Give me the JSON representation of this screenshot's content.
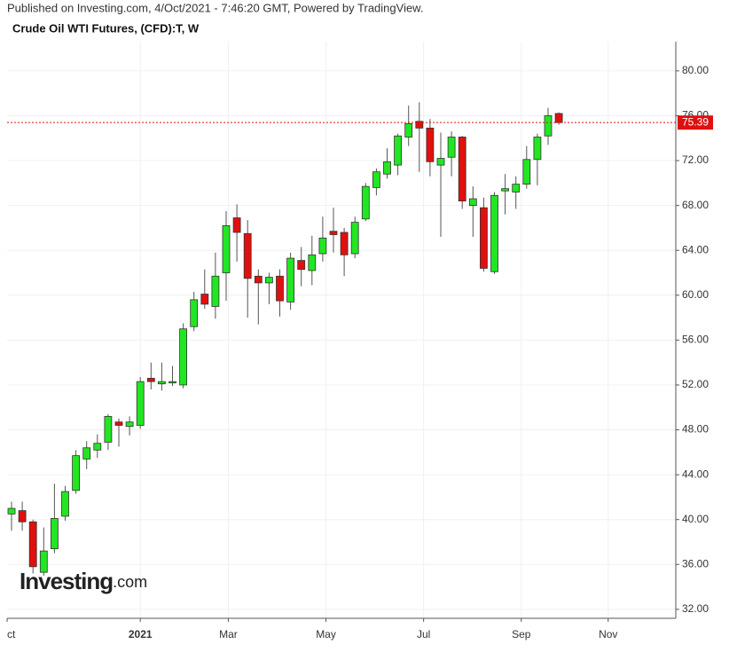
{
  "chart_data": {
    "type": "candlestick",
    "published": "Published on Investing.com, 4/Oct/2021 - 7:46:20 GMT, Powered by TradingView.",
    "title": "Crude Oil WTI Futures, (CFD):T, W",
    "watermark": "Investing",
    "watermark_suffix": ".com",
    "x": [
      0,
      1,
      2,
      3,
      4,
      5,
      6,
      7,
      8,
      9,
      10,
      11,
      12,
      13,
      14,
      15,
      16,
      17,
      18,
      19,
      20,
      21,
      22,
      23,
      24,
      25,
      26,
      27,
      28,
      29,
      30,
      31,
      32,
      33,
      34,
      35,
      36,
      37,
      38,
      39,
      40,
      41,
      42,
      43,
      44,
      45,
      46,
      47,
      48,
      49,
      50,
      51
    ],
    "open": [
      40.5,
      40.8,
      39.8,
      35.3,
      37.4,
      40.3,
      42.6,
      45.4,
      46.2,
      46.9,
      48.7,
      48.3,
      48.4,
      52.6,
      52.1,
      52.2,
      52.0,
      57.2,
      60.1,
      59.0,
      62.0,
      66.9,
      65.5,
      61.7,
      61.1,
      61.7,
      59.4,
      63.1,
      62.2,
      63.7,
      65.7,
      65.6,
      63.7,
      66.8,
      69.6,
      70.8,
      71.6,
      74.1,
      75.5,
      74.9,
      71.6,
      72.3,
      74.1,
      68.0,
      67.8,
      62.1,
      69.3,
      69.2,
      69.9,
      72.1,
      74.2,
      76.2
    ],
    "high": [
      41.6,
      41.6,
      40.0,
      39.3,
      43.2,
      43.0,
      46.2,
      47.0,
      47.6,
      49.4,
      49.0,
      49.2,
      52.7,
      54.0,
      54.0,
      53.7,
      57.5,
      60.3,
      62.3,
      63.8,
      67.5,
      68.1,
      66.7,
      62.3,
      62.0,
      62.3,
      63.8,
      64.3,
      65.3,
      67.0,
      67.8,
      66.0,
      67.0,
      70.0,
      71.3,
      73.1,
      74.4,
      76.9,
      77.2,
      75.7,
      74.5,
      74.6,
      74.2,
      69.7,
      68.7,
      69.2,
      70.8,
      70.6,
      73.3,
      74.4,
      76.7,
      76.3
    ],
    "low": [
      39.0,
      39.0,
      35.2,
      35.0,
      37.0,
      39.9,
      42.3,
      44.5,
      45.5,
      46.2,
      46.5,
      47.5,
      48.1,
      51.6,
      51.5,
      51.9,
      51.7,
      56.8,
      58.8,
      57.9,
      59.5,
      63.0,
      58.0,
      57.4,
      59.2,
      58.1,
      58.7,
      60.8,
      60.9,
      63.0,
      63.8,
      61.7,
      63.3,
      66.6,
      68.9,
      70.4,
      70.7,
      73.3,
      71.0,
      70.6,
      65.2,
      70.6,
      67.7,
      65.2,
      62.1,
      61.9,
      67.2,
      67.7,
      69.5,
      69.8,
      73.4,
      75.2
    ],
    "close": [
      41.0,
      39.8,
      35.8,
      37.2,
      40.1,
      42.5,
      45.7,
      46.4,
      46.8,
      49.2,
      48.4,
      48.7,
      52.3,
      52.3,
      52.3,
      52.3,
      57.0,
      59.6,
      59.2,
      61.7,
      66.2,
      65.6,
      61.5,
      61.1,
      61.6,
      59.5,
      63.3,
      62.3,
      63.6,
      65.1,
      65.4,
      63.6,
      66.5,
      69.7,
      71.0,
      71.9,
      74.2,
      75.3,
      74.9,
      71.9,
      72.2,
      74.1,
      68.4,
      68.6,
      62.4,
      68.9,
      69.5,
      69.9,
      72.1,
      74.1,
      76.0,
      75.39
    ],
    "up_color": "#22e622",
    "down_color": "#e01010",
    "last_price": 75.39,
    "xlim": [
      -0.413,
      61.9
    ],
    "xticks": [
      {
        "value": -0.41,
        "label": "ct"
      },
      {
        "value": 12,
        "label": "2021"
      },
      {
        "value": 20.2,
        "label": "Mar"
      },
      {
        "value": 29.3,
        "label": "May"
      },
      {
        "value": 38.4,
        "label": "Jul"
      },
      {
        "value": 47.5,
        "label": "Sep"
      },
      {
        "value": 55.6,
        "label": "Nov"
      }
    ],
    "ylim": [
      31.2,
      82.6
    ],
    "yticks": [
      {
        "value": 32,
        "label": "32.00"
      },
      {
        "value": 36,
        "label": "36.00"
      },
      {
        "value": 40,
        "label": "40.00"
      },
      {
        "value": 44,
        "label": "44.00"
      },
      {
        "value": 48,
        "label": "48.00"
      },
      {
        "value": 52,
        "label": "52.00"
      },
      {
        "value": 56,
        "label": "56.00"
      },
      {
        "value": 60,
        "label": "60.00"
      },
      {
        "value": 64,
        "label": "64.00"
      },
      {
        "value": 68,
        "label": "68.00"
      },
      {
        "value": 72,
        "label": "72.00"
      },
      {
        "value": 76,
        "label": "76.00"
      },
      {
        "value": 80,
        "label": "80.00"
      }
    ],
    "grid": true
  }
}
